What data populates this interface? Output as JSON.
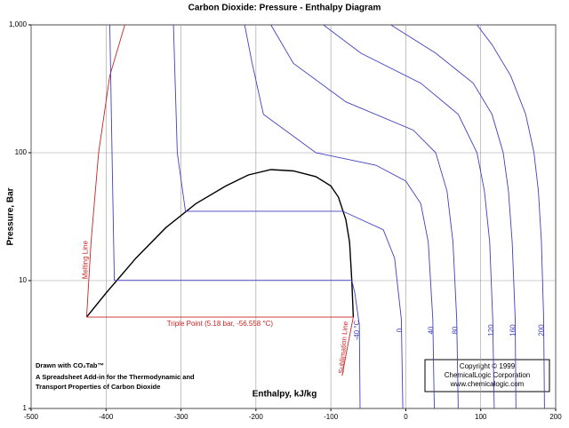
{
  "chart_data": {
    "type": "line",
    "title": "Carbon Dioxide: Pressure - Enthalpy Diagram",
    "x_label": "Enthalpy, kJ/kg",
    "y_label": "Pressure, Bar",
    "log_y": true,
    "grid": true,
    "xlim": [
      -500,
      200
    ],
    "xticks": [
      -500,
      -400,
      -300,
      -200,
      -100,
      0,
      100,
      200
    ],
    "ylim": [
      1,
      1000
    ],
    "yticks": [
      1,
      10,
      100,
      {
        "value": 1000,
        "label": "1,000"
      }
    ],
    "series": [
      {
        "color": "#000000",
        "x": [
          -426,
          -400,
          -360,
          -320,
          -280,
          -240,
          -210,
          -180,
          -150,
          -120,
          -100,
          -90,
          -80,
          -75,
          -72,
          -70
        ],
        "values": [
          5.18,
          8,
          15,
          26,
          40,
          55,
          67,
          73.8,
          72,
          65,
          55,
          45,
          30,
          20,
          10,
          5.18
        ]
      },
      {
        "name": "Melting Line",
        "color": "#cc2222",
        "x": [
          -426,
          -420,
          -410,
          -395,
          -375
        ],
        "values": [
          5.18,
          20,
          100,
          400,
          1000
        ]
      },
      {
        "name": "Sublimation Line",
        "color": "#cc2222",
        "x": [
          -70,
          -78,
          -85
        ],
        "values": [
          5.18,
          3,
          1.8
        ]
      },
      {
        "name": "Triple Point (5.18 bar, -56.558 °C)",
        "color": "#cc2222",
        "x": [
          -426,
          -70
        ],
        "values": [
          5.18,
          5.18
        ]
      },
      {
        "name": "-40 °C",
        "color": "#4040c0",
        "x": [
          -61,
          -62,
          -68,
          -72,
          -389,
          -392,
          -395
        ],
        "values": [
          1,
          4.5,
          8,
          10.05,
          10.05,
          100,
          1000
        ]
      },
      {
        "name": "0",
        "color": "#4040c0",
        "x": [
          -4,
          -6,
          -15,
          -30,
          -84,
          -294,
          -305,
          -310
        ],
        "values": [
          1,
          5,
          15,
          25,
          34.85,
          34.85,
          100,
          1000
        ]
      },
      {
        "name": "40",
        "color": "#4040c0",
        "x": [
          38,
          36,
          30,
          20,
          0,
          -40,
          -120,
          -190,
          -205,
          -215
        ],
        "values": [
          1,
          5,
          20,
          40,
          60,
          80,
          100,
          200,
          500,
          1000
        ]
      },
      {
        "name": "80",
        "color": "#4040c0",
        "x": [
          70,
          68,
          63,
          55,
          40,
          10,
          -80,
          -150,
          -180
        ],
        "values": [
          1,
          5,
          20,
          50,
          100,
          150,
          250,
          500,
          1000
        ]
      },
      {
        "name": "120",
        "color": "#4040c0",
        "x": [
          118,
          116,
          112,
          105,
          95,
          70,
          20,
          -60,
          -110
        ],
        "values": [
          1,
          5,
          20,
          50,
          100,
          200,
          350,
          600,
          1000
        ]
      },
      {
        "name": "160",
        "color": "#4040c0",
        "x": [
          147,
          146,
          142,
          137,
          130,
          115,
          90,
          40,
          -20
        ],
        "values": [
          1,
          5,
          20,
          50,
          100,
          200,
          350,
          600,
          1000
        ]
      },
      {
        "name": "200",
        "color": "#4040c0",
        "x": [
          185,
          184,
          181,
          177,
          171,
          160,
          140,
          115,
          95
        ],
        "values": [
          1,
          5,
          20,
          50,
          100,
          200,
          400,
          700,
          1000
        ]
      }
    ],
    "notes": [
      "Drawn with CO₂Tab™",
      "A Spreadsheet Add-in for the Thermodynamic and",
      "Transport Properties of Carbon Dioxide"
    ],
    "copyright": [
      "Copyright © 1999",
      "ChemicalLogic Corporation",
      "www.chemicalogic.com"
    ]
  }
}
